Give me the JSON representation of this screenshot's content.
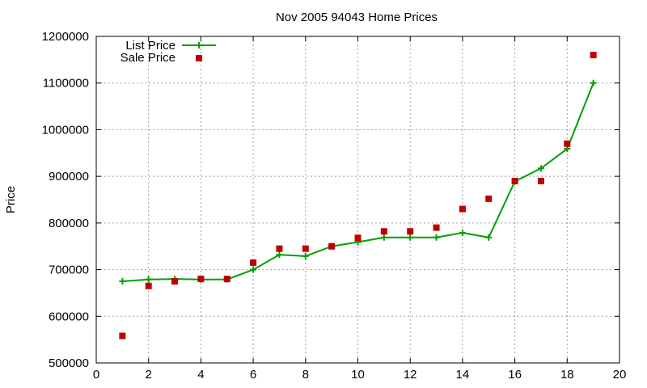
{
  "chart_data": {
    "type": "line",
    "title": "Nov 2005 94043 Home Prices",
    "xlabel": "",
    "ylabel": "Price",
    "xlim": [
      0,
      20
    ],
    "ylim": [
      500000,
      1200000
    ],
    "xticks": [
      "0",
      "2",
      "4",
      "6",
      "8",
      "10",
      "12",
      "14",
      "16",
      "18",
      "20"
    ],
    "yticks": [
      "500000",
      "600000",
      "700000",
      "800000",
      "900000",
      "1000000",
      "1100000",
      "1200000"
    ],
    "grid": true,
    "legend_position": "top-left",
    "series": [
      {
        "name": "List Price",
        "style": "line+cross",
        "color": "#00a000",
        "x": [
          1,
          2,
          3,
          4,
          5,
          6,
          7,
          8,
          9,
          10,
          11,
          12,
          13,
          14,
          15,
          16,
          17,
          18,
          19
        ],
        "y": [
          675000,
          679000,
          680000,
          679000,
          679000,
          700000,
          732000,
          729000,
          750000,
          759000,
          769000,
          769000,
          769000,
          779000,
          769000,
          889000,
          917000,
          959000,
          1100000
        ]
      },
      {
        "name": "Sale Price",
        "style": "square",
        "color": "#c00000",
        "x": [
          1,
          2,
          3,
          4,
          5,
          6,
          7,
          8,
          9,
          10,
          11,
          12,
          13,
          14,
          15,
          16,
          17,
          18,
          19
        ],
        "y": [
          558000,
          665000,
          675000,
          680000,
          680000,
          715000,
          745000,
          745000,
          750000,
          768000,
          782000,
          782000,
          790000,
          830000,
          852000,
          890000,
          890000,
          970000,
          1160000
        ]
      }
    ]
  }
}
